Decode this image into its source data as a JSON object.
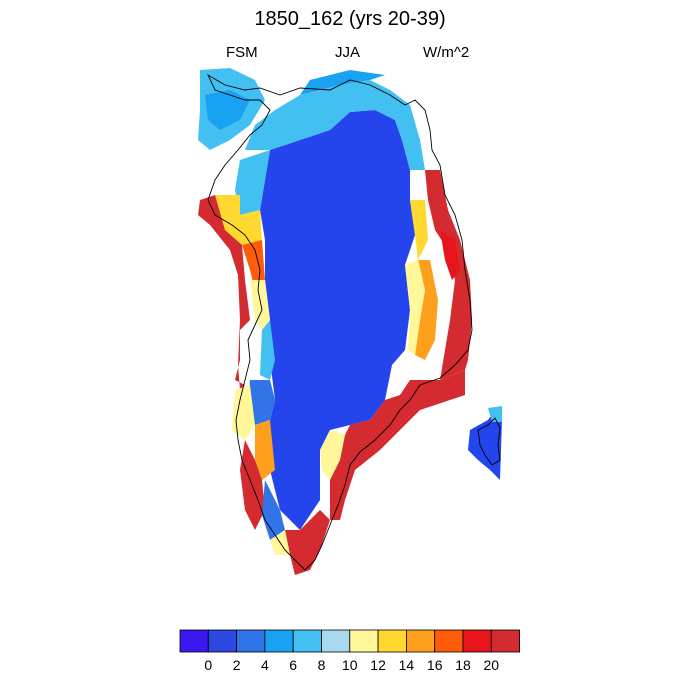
{
  "title": "1850_162 (yrs 20-39)",
  "subtitle_left": "FSM",
  "subtitle_center": "JJA",
  "subtitle_right": "W/m^2",
  "colorbar": {
    "colors": [
      "#3b17f0",
      "#2b48e0",
      "#3174e8",
      "#1aa2f2",
      "#43c0f2",
      "#a8d8ee",
      "#fff799",
      "#ffd92f",
      "#ffa01c",
      "#ff5c0a",
      "#e8141b",
      "#d32b2f"
    ],
    "tick_labels": [
      "0",
      "2",
      "4",
      "6",
      "8",
      "10",
      "12",
      "14",
      "16",
      "18",
      "20"
    ]
  }
}
